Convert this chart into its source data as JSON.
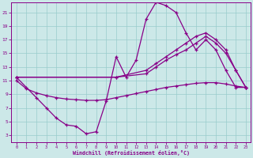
{
  "xlabel": "Windchill (Refroidissement éolien,°C)",
  "background_color": "#cce8e8",
  "line_color": "#880088",
  "xlim": [
    -0.5,
    23.5
  ],
  "ylim": [
    2,
    22.5
  ],
  "xticks": [
    0,
    1,
    2,
    3,
    4,
    5,
    6,
    7,
    8,
    9,
    10,
    11,
    12,
    13,
    14,
    15,
    16,
    17,
    18,
    19,
    20,
    21,
    22,
    23
  ],
  "yticks": [
    3,
    5,
    7,
    9,
    11,
    13,
    15,
    17,
    19,
    21
  ],
  "curve1_x": [
    0,
    1,
    2,
    3,
    4,
    5,
    6,
    7,
    8,
    9,
    10,
    11,
    12,
    13,
    14,
    15,
    16,
    17,
    18,
    19,
    20,
    21,
    22,
    23
  ],
  "curve1_y": [
    11.5,
    10.0,
    8.5,
    7.0,
    5.5,
    4.5,
    4.3,
    3.2,
    3.5,
    8.0,
    14.5,
    11.5,
    14.0,
    20.0,
    22.5,
    22.0,
    21.0,
    18.0,
    15.5,
    17.0,
    15.5,
    12.5,
    10.0,
    10.0
  ],
  "curve2_x": [
    0,
    10,
    13,
    14,
    15,
    16,
    17,
    18,
    19,
    20,
    21,
    22,
    23
  ],
  "curve2_y": [
    11.5,
    11.5,
    12.5,
    13.5,
    14.5,
    15.5,
    16.5,
    17.5,
    18.0,
    17.0,
    15.5,
    12.5,
    10.0
  ],
  "curve3_x": [
    0,
    10,
    13,
    14,
    15,
    16,
    17,
    18,
    19,
    20,
    21,
    22,
    23
  ],
  "curve3_y": [
    11.5,
    11.5,
    12.0,
    13.0,
    14.0,
    14.8,
    15.5,
    16.5,
    17.5,
    16.5,
    15.0,
    12.5,
    10.0
  ],
  "curve4_x": [
    0,
    1,
    2,
    3,
    4,
    5,
    6,
    7,
    8,
    9,
    10,
    11,
    12,
    13,
    14,
    15,
    16,
    17,
    18,
    19,
    20,
    21,
    22,
    23
  ],
  "curve4_y": [
    11.0,
    9.8,
    9.2,
    8.8,
    8.5,
    8.3,
    8.2,
    8.1,
    8.1,
    8.2,
    8.5,
    8.8,
    9.1,
    9.4,
    9.7,
    10.0,
    10.2,
    10.4,
    10.6,
    10.7,
    10.7,
    10.5,
    10.2,
    10.0
  ]
}
